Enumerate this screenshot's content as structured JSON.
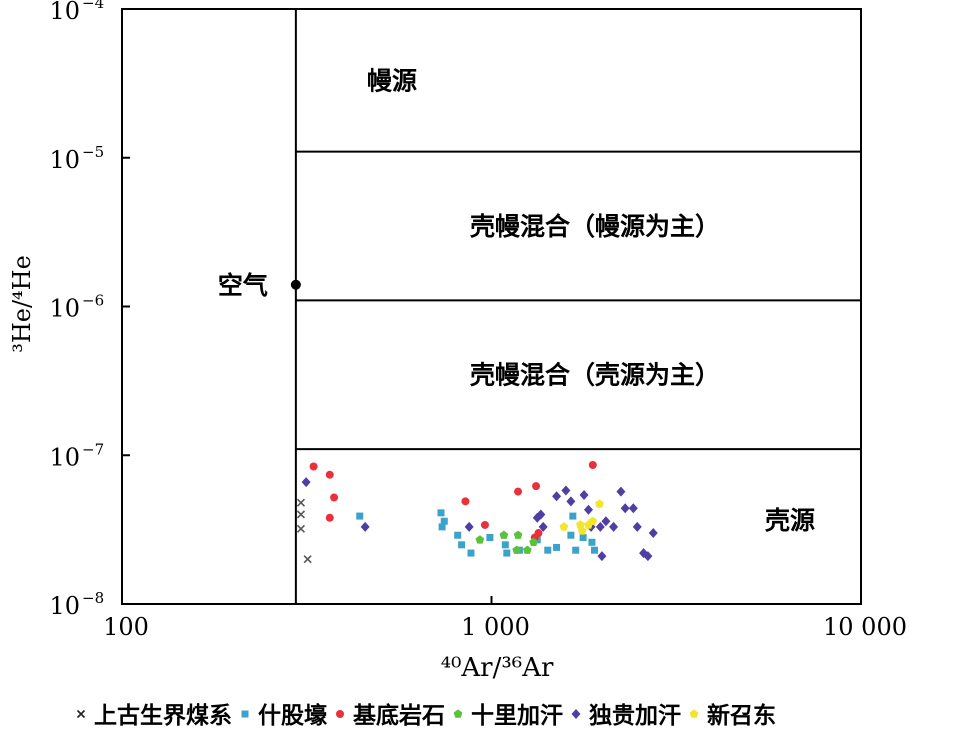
{
  "chart_data": {
    "type": "scatter",
    "xlabel": "⁴⁰Ar/³⁶Ar",
    "ylabel": "³He/⁴He",
    "x_scale": "log",
    "y_scale": "log",
    "xlim": [
      100,
      10000
    ],
    "ylim": [
      1e-08,
      0.0001
    ],
    "x_ticks": [
      {
        "value": 100,
        "label": "100"
      },
      {
        "value": 1000,
        "label": "1 000"
      },
      {
        "value": 10000,
        "label": "10 000"
      }
    ],
    "y_ticks": [
      {
        "value": 0.0001,
        "base": "10",
        "exp": "−4"
      },
      {
        "value": 1e-05,
        "base": "10",
        "exp": "−5"
      },
      {
        "value": 1e-06,
        "base": "10",
        "exp": "−6"
      },
      {
        "value": 1e-07,
        "base": "10",
        "exp": "−7"
      },
      {
        "value": 1e-08,
        "base": "10",
        "exp": "−8"
      }
    ],
    "grid": false,
    "legend_position": "bottom",
    "air_point": {
      "label": "空气",
      "x": 295.5,
      "y": 1.4e-06
    },
    "regions": [
      {
        "label": "幔源",
        "y_min": 1.1e-05,
        "y_max": 0.0001
      },
      {
        "label": "壳幔混合（幔源为主）",
        "y_min": 1.1e-06,
        "y_max": 1.1e-05
      },
      {
        "label": "壳幔混合（壳源为主）",
        "y_min": 1.1e-07,
        "y_max": 1.1e-06
      },
      {
        "label": "壳源",
        "y_min": 1e-08,
        "y_max": 1.1e-07
      }
    ],
    "region_boundaries_y": [
      1.1e-05,
      1.1e-06,
      1.1e-07
    ],
    "series": [
      {
        "name": "上古生界煤系",
        "marker": "x",
        "color": "#555555",
        "points": [
          [
            305,
            4.8e-08
          ],
          [
            305,
            4e-08
          ],
          [
            305,
            3.2e-08
          ],
          [
            318,
            2e-08
          ]
        ]
      },
      {
        "name": "什股壕",
        "marker": "square",
        "color": "#3ba3c9",
        "points": [
          [
            440,
            3.9e-08
          ],
          [
            730,
            4.1e-08
          ],
          [
            745,
            3.6e-08
          ],
          [
            735,
            3.3e-08
          ],
          [
            810,
            2.9e-08
          ],
          [
            830,
            2.5e-08
          ],
          [
            880,
            2.2e-08
          ],
          [
            990,
            2.8e-08
          ],
          [
            1090,
            2.5e-08
          ],
          [
            1100,
            2.2e-08
          ],
          [
            1190,
            2.3e-08
          ],
          [
            1330,
            2.7e-08
          ],
          [
            1420,
            2.3e-08
          ],
          [
            1500,
            2.4e-08
          ],
          [
            1640,
            2.9e-08
          ],
          [
            1660,
            3.9e-08
          ],
          [
            1690,
            2.3e-08
          ],
          [
            1770,
            2.8e-08
          ],
          [
            1870,
            2.6e-08
          ],
          [
            1900,
            2.3e-08
          ]
        ]
      },
      {
        "name": "基底岩石",
        "marker": "circle",
        "color": "#e8313b",
        "points": [
          [
            330,
            8.4e-08
          ],
          [
            365,
            7.4e-08
          ],
          [
            375,
            5.2e-08
          ],
          [
            365,
            3.8e-08
          ],
          [
            850,
            4.9e-08
          ],
          [
            960,
            3.4e-08
          ],
          [
            1180,
            5.7e-08
          ],
          [
            1320,
            6.2e-08
          ],
          [
            1340,
            3e-08
          ],
          [
            1310,
            2.8e-08
          ],
          [
            1880,
            8.6e-08
          ]
        ]
      },
      {
        "name": "十里加汗",
        "marker": "pentagon",
        "color": "#5ac13a",
        "points": [
          [
            930,
            2.7e-08
          ],
          [
            1080,
            2.9e-08
          ],
          [
            1180,
            2.9e-08
          ],
          [
            1170,
            2.3e-08
          ],
          [
            1250,
            2.3e-08
          ],
          [
            1300,
            2.6e-08
          ]
        ]
      },
      {
        "name": "独贵加汗",
        "marker": "diamond",
        "color": "#4e3fa4",
        "points": [
          [
            315,
            6.6e-08
          ],
          [
            455,
            3.3e-08
          ],
          [
            870,
            3.3e-08
          ],
          [
            1330,
            3.8e-08
          ],
          [
            1360,
            4e-08
          ],
          [
            1380,
            3.3e-08
          ],
          [
            1500,
            5.3e-08
          ],
          [
            1590,
            5.8e-08
          ],
          [
            1640,
            4.9e-08
          ],
          [
            1780,
            5.4e-08
          ],
          [
            1830,
            4.3e-08
          ],
          [
            1860,
            3.3e-08
          ],
          [
            1970,
            3.3e-08
          ],
          [
            1990,
            2.1e-08
          ],
          [
            2040,
            3.6e-08
          ],
          [
            2140,
            3.3e-08
          ],
          [
            2240,
            5.7e-08
          ],
          [
            2300,
            4.4e-08
          ],
          [
            2420,
            4.4e-08
          ],
          [
            2480,
            3.3e-08
          ],
          [
            2580,
            2.2e-08
          ],
          [
            2650,
            2.1e-08
          ],
          [
            2740,
            3e-08
          ]
        ]
      },
      {
        "name": "新召东",
        "marker": "pentagon",
        "color": "#f2e52d",
        "points": [
          [
            1570,
            3.3e-08
          ],
          [
            1740,
            3.4e-08
          ],
          [
            1760,
            3.1e-08
          ],
          [
            1830,
            3.4e-08
          ],
          [
            1880,
            3.6e-08
          ],
          [
            1960,
            4.7e-08
          ]
        ]
      }
    ]
  }
}
